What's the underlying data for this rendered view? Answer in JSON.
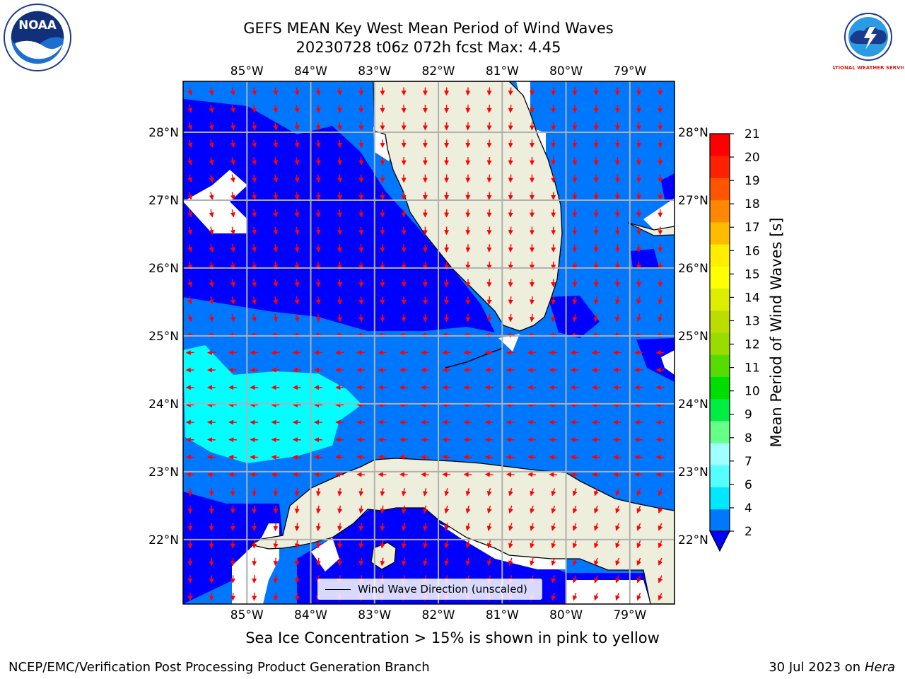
{
  "header": {
    "title_line1": "GEFS MEAN Key West Mean Period of Wind Waves",
    "title_line2": "20230728 t06z 072h fcst   Max: 4.45"
  },
  "logos": {
    "left": "NOAA",
    "right": "NATIONAL WEATHER SERVICE"
  },
  "map": {
    "lon_labels": [
      "85°W",
      "84°W",
      "83°W",
      "82°W",
      "81°W",
      "80°W",
      "79°W"
    ],
    "lon_values": [
      -85,
      -84,
      -83,
      -82,
      -81,
      -80,
      -79
    ],
    "lat_labels": [
      "28°N",
      "27°N",
      "26°N",
      "25°N",
      "24°N",
      "23°N",
      "22°N"
    ],
    "lat_values": [
      28,
      27,
      26,
      25,
      24,
      23,
      22
    ],
    "lon_range": [
      -86,
      -78.3
    ],
    "lat_range": [
      21.05,
      28.75
    ],
    "legend_label": "Wind Wave Direction (unscaled)",
    "colors": {
      "land": "#eeeedc",
      "band_2_4": "#0077ff",
      "band_lt2": "#0000ff",
      "band_4_6": "#00ffff",
      "arrow": "#ff0000",
      "grid": "#b0b0b0"
    }
  },
  "colorbar": {
    "label": "Mean Period of Wind Waves [s]",
    "ticks": [
      "2",
      "4",
      "6",
      "7",
      "8",
      "9",
      "10",
      "11",
      "12",
      "13",
      "14",
      "15",
      "16",
      "17",
      "18",
      "19",
      "20",
      "21"
    ],
    "colors": [
      "#0077ff",
      "#00e7ff",
      "#55ffff",
      "#a0ffff",
      "#66ff88",
      "#00ee44",
      "#00dd00",
      "#55dd00",
      "#99dd00",
      "#bbdd00",
      "#ddee00",
      "#ffff00",
      "#ffee00",
      "#ffbb00",
      "#ff8800",
      "#ff5500",
      "#ff2200",
      "#ff0000"
    ],
    "extend_min_color": "#0000ff"
  },
  "note": "Sea Ice Concentration > 15% is shown in pink to yellow",
  "footer": {
    "left": "NCEP/EMC/Verification Post Processing Product Generation Branch",
    "right_date": "30 Jul 2023 on ",
    "right_machine": "Hera"
  }
}
